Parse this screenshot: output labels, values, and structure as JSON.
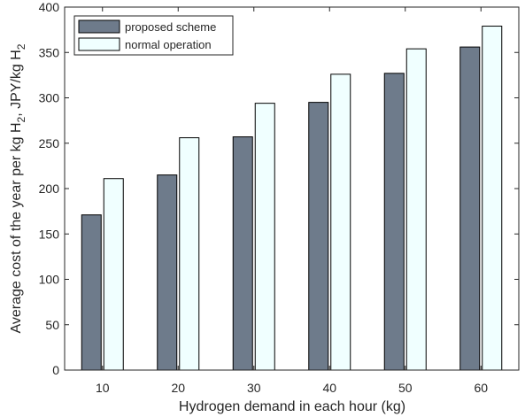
{
  "chart_data": {
    "type": "bar",
    "title": "",
    "xlabel": "Hydrogen demand in each hour (kg)",
    "ylabel_parts": [
      "Average cost of the year per kg H",
      "2",
      ", JPY/kg H",
      "2"
    ],
    "categories": [
      "10",
      "20",
      "30",
      "40",
      "50",
      "60"
    ],
    "series": [
      {
        "name": "proposed scheme",
        "values": [
          171,
          215,
          257,
          295,
          327,
          356
        ],
        "color": "#6e7b8b"
      },
      {
        "name": "normal operation",
        "values": [
          211,
          256,
          294,
          326,
          354,
          379
        ],
        "color": "#f0ffff"
      }
    ],
    "ylim": [
      0,
      400
    ],
    "yticks": [
      "0",
      "50",
      "100",
      "150",
      "200",
      "250",
      "300",
      "350",
      "400"
    ],
    "grid": false,
    "legend_position": "top-left",
    "edge_color": "#000000"
  }
}
